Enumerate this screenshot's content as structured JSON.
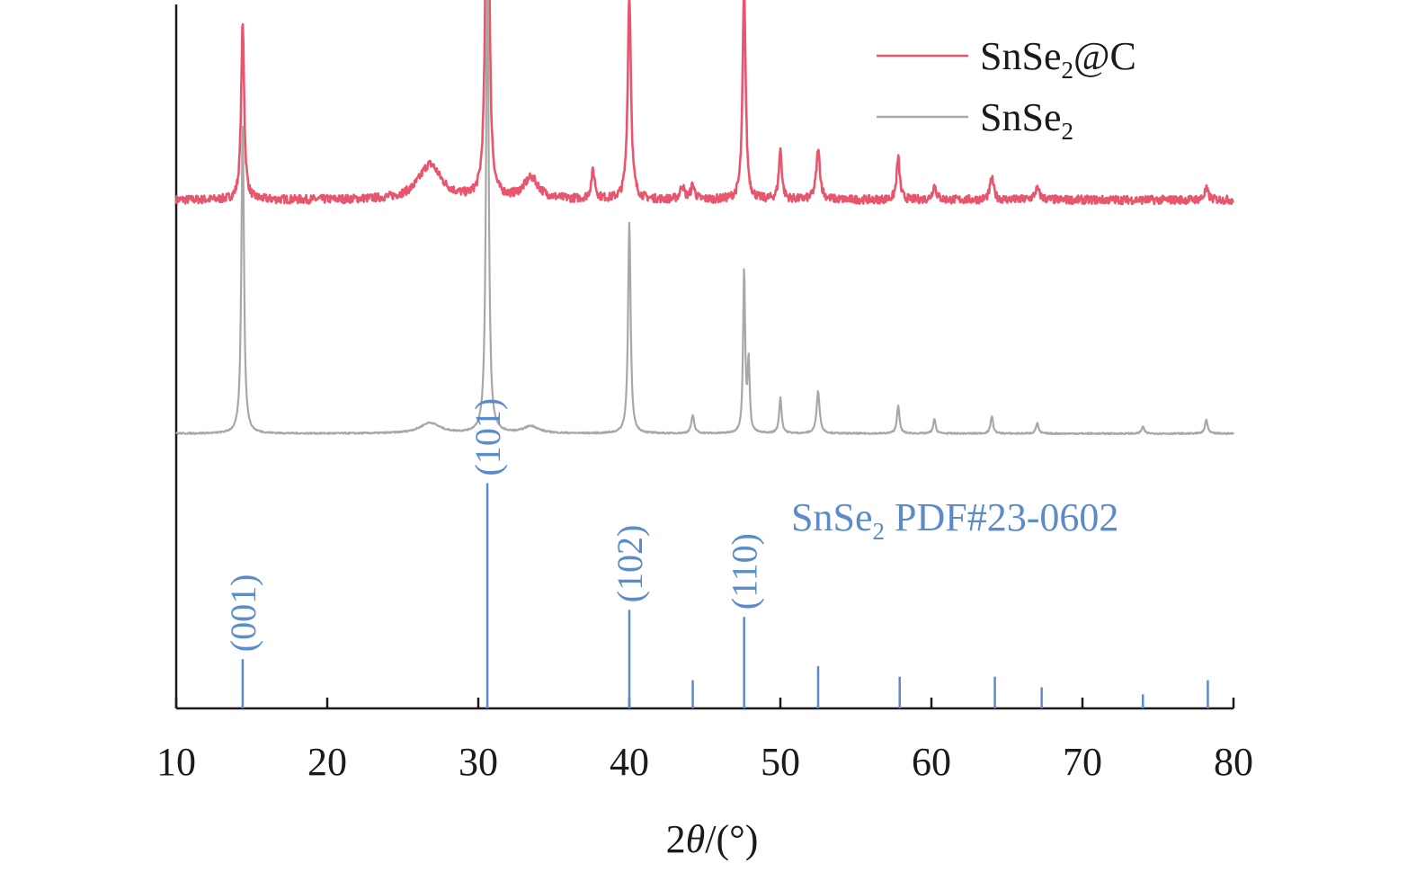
{
  "chart_data": {
    "type": "line",
    "title": "",
    "xlabel": "2θ/(°)",
    "xlabel_parts": {
      "num": "2",
      "theta": "θ",
      "unit": "/(°)"
    },
    "ylabel": "",
    "xlim": [
      10,
      80
    ],
    "x_ticks": [
      10,
      20,
      30,
      40,
      50,
      60,
      70,
      80
    ],
    "x_tick_labels": [
      "10",
      "20",
      "30",
      "40",
      "50",
      "60",
      "70",
      "80"
    ],
    "y_axis": "offset stacked intensity (arbitrary units, no tick labels)",
    "grid": false,
    "legend_position": "top-right",
    "series": [
      {
        "name": "SnSe2@C",
        "name_parts": {
          "base": "SnSe",
          "sub": "2",
          "suffix": "@C"
        },
        "color": "#e8566e",
        "offset": 0.72,
        "baseline_noise": 0.012,
        "peaks": [
          {
            "x": 14.4,
            "h": 0.25,
            "w": 0.12
          },
          {
            "x": 26.8,
            "h": 0.05,
            "w": 0.9
          },
          {
            "x": 30.6,
            "h": 0.72,
            "w": 0.12
          },
          {
            "x": 33.5,
            "h": 0.03,
            "w": 0.6
          },
          {
            "x": 37.6,
            "h": 0.04,
            "w": 0.15
          },
          {
            "x": 40.0,
            "h": 0.29,
            "w": 0.13
          },
          {
            "x": 43.5,
            "h": 0.02,
            "w": 0.15
          },
          {
            "x": 44.2,
            "h": 0.02,
            "w": 0.15
          },
          {
            "x": 47.6,
            "h": 0.3,
            "w": 0.12
          },
          {
            "x": 50.0,
            "h": 0.07,
            "w": 0.12
          },
          {
            "x": 52.5,
            "h": 0.07,
            "w": 0.15
          },
          {
            "x": 57.8,
            "h": 0.06,
            "w": 0.12
          },
          {
            "x": 60.2,
            "h": 0.02,
            "w": 0.15
          },
          {
            "x": 64.0,
            "h": 0.03,
            "w": 0.15
          },
          {
            "x": 67.0,
            "h": 0.015,
            "w": 0.2
          },
          {
            "x": 78.2,
            "h": 0.015,
            "w": 0.15
          }
        ]
      },
      {
        "name": "SnSe2",
        "name_parts": {
          "base": "SnSe",
          "sub": "2",
          "suffix": ""
        },
        "color": "#a8a8a8",
        "offset": 0.39,
        "baseline_noise": 0.002,
        "peaks": [
          {
            "x": 14.4,
            "h": 0.44,
            "w": 0.1
          },
          {
            "x": 26.8,
            "h": 0.015,
            "w": 0.8
          },
          {
            "x": 30.6,
            "h": 0.71,
            "w": 0.1
          },
          {
            "x": 33.5,
            "h": 0.01,
            "w": 0.6
          },
          {
            "x": 40.0,
            "h": 0.3,
            "w": 0.1
          },
          {
            "x": 44.2,
            "h": 0.025,
            "w": 0.12
          },
          {
            "x": 47.6,
            "h": 0.23,
            "w": 0.08
          },
          {
            "x": 47.9,
            "h": 0.1,
            "w": 0.08
          },
          {
            "x": 50.0,
            "h": 0.05,
            "w": 0.1
          },
          {
            "x": 52.5,
            "h": 0.06,
            "w": 0.12
          },
          {
            "x": 57.8,
            "h": 0.04,
            "w": 0.1
          },
          {
            "x": 60.2,
            "h": 0.02,
            "w": 0.1
          },
          {
            "x": 64.0,
            "h": 0.025,
            "w": 0.1
          },
          {
            "x": 67.0,
            "h": 0.015,
            "w": 0.1
          },
          {
            "x": 74.0,
            "h": 0.01,
            "w": 0.1
          },
          {
            "x": 78.2,
            "h": 0.02,
            "w": 0.1
          }
        ]
      }
    ],
    "reference": {
      "name": "SnSe2 PDF#23-0602",
      "name_parts": {
        "base": "SnSe",
        "sub": "2",
        "suffix": " PDF#23-0602"
      },
      "color": "#5b8bc8",
      "sticks": [
        {
          "x": 14.4,
          "h": 0.07,
          "hkl": "(001)"
        },
        {
          "x": 30.6,
          "h": 0.32,
          "hkl": "(101)"
        },
        {
          "x": 40.0,
          "h": 0.14,
          "hkl": "(102)"
        },
        {
          "x": 44.2,
          "h": 0.04,
          "hkl": ""
        },
        {
          "x": 47.6,
          "h": 0.13,
          "hkl": "(110)"
        },
        {
          "x": 52.5,
          "h": 0.06,
          "hkl": ""
        },
        {
          "x": 57.9,
          "h": 0.045,
          "hkl": ""
        },
        {
          "x": 64.2,
          "h": 0.045,
          "hkl": ""
        },
        {
          "x": 67.3,
          "h": 0.03,
          "hkl": ""
        },
        {
          "x": 74.0,
          "h": 0.02,
          "hkl": ""
        },
        {
          "x": 78.3,
          "h": 0.04,
          "hkl": ""
        }
      ]
    },
    "colors": {
      "axis": "#1a1a1a",
      "reference": "#5b8bc8"
    }
  }
}
